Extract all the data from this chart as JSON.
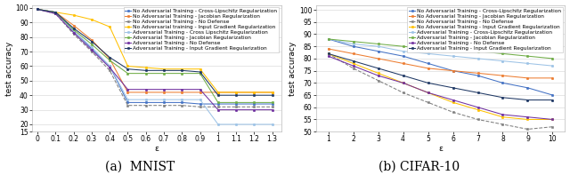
{
  "mnist": {
    "xlabel": "ε",
    "ylabel": "test accuracy",
    "title": "(a)  MNIST",
    "xlim": [
      -0.03,
      1.35
    ],
    "ylim": [
      15,
      102
    ],
    "yticks": [
      15,
      20,
      30,
      40,
      50,
      60,
      70,
      80,
      90,
      100
    ],
    "xticks": [
      0,
      0.1,
      0.2,
      0.3,
      0.4,
      0.5,
      0.6,
      0.7,
      0.8,
      0.9,
      1.0,
      1.1,
      1.2,
      1.3
    ],
    "xtick_labels": [
      "0",
      "0.1",
      "0.2",
      "0.3",
      "0.4",
      "0.5",
      "0.6",
      "0.7",
      "0.8",
      "0.9",
      "1",
      "1.1",
      "1.2",
      "1.3"
    ],
    "lines": [
      {
        "label": "No Adversarial Training - Cross-Lipschitz Regularization",
        "color": "#4472C4",
        "marker": "o",
        "linestyle": "-",
        "x": [
          0,
          0.1,
          0.2,
          0.3,
          0.4,
          0.5,
          0.6,
          0.7,
          0.8,
          0.9,
          1.0,
          1.1,
          1.2,
          1.3
        ],
        "y": [
          99,
          97,
          84,
          72,
          60,
          35,
          35,
          35,
          35,
          34,
          34,
          34,
          34,
          34
        ]
      },
      {
        "label": "No Adversarial Training - Jacobian Regularization",
        "color": "#ED7D31",
        "marker": "o",
        "linestyle": "-",
        "x": [
          0,
          0.1,
          0.2,
          0.3,
          0.4,
          0.5,
          0.6,
          0.7,
          0.8,
          0.9,
          1.0,
          1.1,
          1.2,
          1.3
        ],
        "y": [
          99,
          97,
          88,
          78,
          65,
          42,
          42,
          42,
          42,
          42,
          42,
          42,
          42,
          42
        ]
      },
      {
        "label": "No Adversarial Training - No Defense",
        "color": "#7F7F7F",
        "marker": "s",
        "linestyle": "--",
        "x": [
          0,
          0.1,
          0.2,
          0.3,
          0.4,
          0.5,
          0.6,
          0.7,
          0.8,
          0.9,
          1.0,
          1.1,
          1.2,
          1.3
        ],
        "y": [
          99,
          96,
          82,
          70,
          57,
          33,
          33,
          33,
          33,
          32,
          32,
          32,
          32,
          32
        ]
      },
      {
        "label": "No Adversarial training - Input Gradient Regularization",
        "color": "#FFC000",
        "marker": "o",
        "linestyle": "-",
        "x": [
          0,
          0.1,
          0.2,
          0.3,
          0.4,
          0.5,
          0.6,
          0.7,
          0.8,
          0.9,
          1.0,
          1.1,
          1.2,
          1.3
        ],
        "y": [
          99,
          97,
          95,
          92,
          87,
          60,
          59,
          58,
          58,
          58,
          42,
          42,
          42,
          42
        ]
      },
      {
        "label": "Adversarial Training - Cross Lipschitz Regularization",
        "color": "#9DC3E6",
        "marker": "o",
        "linestyle": "-",
        "x": [
          0,
          0.1,
          0.2,
          0.3,
          0.4,
          0.5,
          0.6,
          0.7,
          0.8,
          0.9,
          1.0,
          1.1,
          1.2,
          1.3
        ],
        "y": [
          99,
          97,
          84,
          73,
          60,
          37,
          37,
          37,
          37,
          37,
          20,
          20,
          20,
          20
        ]
      },
      {
        "label": "Adversarial Training - Jacobian Regularization",
        "color": "#70AD47",
        "marker": "o",
        "linestyle": "-",
        "x": [
          0,
          0.1,
          0.2,
          0.3,
          0.4,
          0.5,
          0.6,
          0.7,
          0.8,
          0.9,
          1.0,
          1.1,
          1.2,
          1.3
        ],
        "y": [
          99,
          97,
          85,
          75,
          64,
          55,
          55,
          55,
          55,
          55,
          35,
          35,
          35,
          35
        ]
      },
      {
        "label": "Adversarial Training - No Defense",
        "color": "#7030A0",
        "marker": "o",
        "linestyle": "-",
        "x": [
          0,
          0.1,
          0.2,
          0.3,
          0.4,
          0.5,
          0.6,
          0.7,
          0.8,
          0.9,
          1.0,
          1.1,
          1.2,
          1.3
        ],
        "y": [
          99,
          96,
          83,
          71,
          59,
          44,
          44,
          44,
          44,
          44,
          30,
          30,
          30,
          30
        ]
      },
      {
        "label": "Adversarial Training - Input Gradient Regularization",
        "color": "#1F3864",
        "marker": "o",
        "linestyle": "-",
        "x": [
          0,
          0.1,
          0.2,
          0.3,
          0.4,
          0.5,
          0.6,
          0.7,
          0.8,
          0.9,
          1.0,
          1.1,
          1.2,
          1.3
        ],
        "y": [
          99,
          97,
          86,
          77,
          66,
          58,
          57,
          57,
          57,
          56,
          40,
          40,
          40,
          40
        ]
      }
    ]
  },
  "cifar": {
    "xlabel": "ε",
    "ylabel": "test accuracy",
    "title": "(b) CIFAR-10",
    "xlim": [
      0.5,
      10.5
    ],
    "ylim": [
      50,
      102
    ],
    "yticks": [
      50,
      55,
      60,
      65,
      70,
      75,
      80,
      85,
      90,
      95,
      100
    ],
    "xticks": [
      1,
      2,
      3,
      4,
      5,
      6,
      7,
      8,
      9,
      10
    ],
    "xtick_labels": [
      "1",
      "2",
      "3",
      "4",
      "5",
      "6",
      "7",
      "8",
      "9",
      "10"
    ],
    "lines": [
      {
        "label": "No Adversarial Training - Cross-Lipschitz Regularization",
        "color": "#4472C4",
        "marker": "o",
        "linestyle": "-",
        "x": [
          1,
          2,
          3,
          4,
          5,
          6,
          7,
          8,
          9,
          10
        ],
        "y": [
          88,
          85,
          83,
          81,
          78,
          75,
          73,
          70,
          68,
          65
        ]
      },
      {
        "label": "No Adversarial Training - Jacobian Regularization",
        "color": "#ED7D31",
        "marker": "o",
        "linestyle": "-",
        "x": [
          1,
          2,
          3,
          4,
          5,
          6,
          7,
          8,
          9,
          10
        ],
        "y": [
          84,
          82,
          80,
          78,
          76,
          75,
          74,
          73,
          72,
          72
        ]
      },
      {
        "label": "No Adversarial Training - No Defense",
        "color": "#7F7F7F",
        "marker": "s",
        "linestyle": "--",
        "x": [
          1,
          2,
          3,
          4,
          5,
          6,
          7,
          8,
          9,
          10
        ],
        "y": [
          82,
          76,
          71,
          66,
          62,
          58,
          55,
          53,
          51,
          52
        ]
      },
      {
        "label": "No Adversarial Training - Input Gradient Regularization",
        "color": "#FFC000",
        "marker": "o",
        "linestyle": "-",
        "x": [
          1,
          2,
          3,
          4,
          5,
          6,
          7,
          8,
          9,
          10
        ],
        "y": [
          82,
          78,
          74,
          70,
          66,
          62,
          59,
          56,
          55,
          55
        ]
      },
      {
        "label": "Adversarial Training - Cross-Lipschitz Regularization",
        "color": "#9DC3E6",
        "marker": "o",
        "linestyle": "-",
        "x": [
          1,
          2,
          3,
          4,
          5,
          6,
          7,
          8,
          9,
          10
        ],
        "y": [
          88,
          86,
          85,
          83,
          82,
          81,
          80,
          79,
          78,
          77
        ]
      },
      {
        "label": "Adversarial Training - Jacobian Regularization",
        "color": "#70AD47",
        "marker": "o",
        "linestyle": "-",
        "x": [
          1,
          2,
          3,
          4,
          5,
          6,
          7,
          8,
          9,
          10
        ],
        "y": [
          88,
          87,
          86,
          85,
          84,
          84,
          83,
          82,
          81,
          80
        ]
      },
      {
        "label": "Adversarial Training - No Defense",
        "color": "#7030A0",
        "marker": "o",
        "linestyle": "-",
        "x": [
          1,
          2,
          3,
          4,
          5,
          6,
          7,
          8,
          9,
          10
        ],
        "y": [
          81,
          77,
          73,
          70,
          66,
          63,
          60,
          57,
          56,
          55
        ]
      },
      {
        "label": "Adversarial Training - Input Gradient Regularization",
        "color": "#1F3864",
        "marker": "o",
        "linestyle": "-",
        "x": [
          1,
          2,
          3,
          4,
          5,
          6,
          7,
          8,
          9,
          10
        ],
        "y": [
          82,
          79,
          76,
          73,
          70,
          68,
          66,
          64,
          63,
          63
        ]
      }
    ]
  },
  "background_color": "#ffffff",
  "grid_color": "#D3D3D3",
  "fontsize_title": 10,
  "fontsize_axis": 6.5,
  "fontsize_legend": 4.2,
  "fontsize_tick": 5.5,
  "marker_size": 1.8,
  "line_width": 0.75
}
